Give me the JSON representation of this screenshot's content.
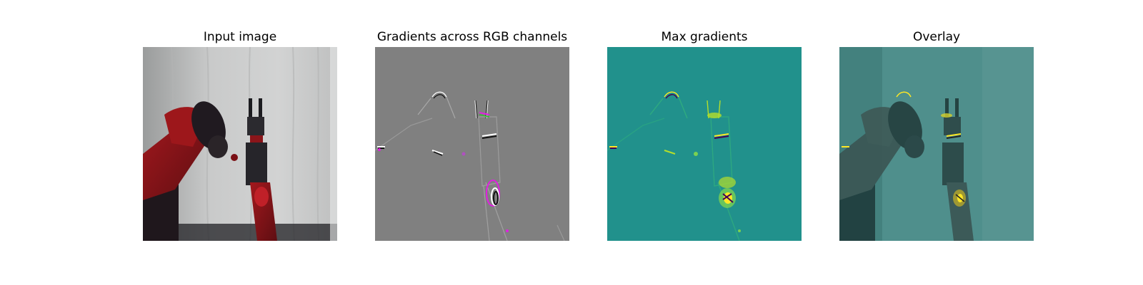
{
  "figure": {
    "panels": [
      {
        "title": "Input image"
      },
      {
        "title": "Gradients across RGB channels"
      },
      {
        "title": "Max gradients"
      },
      {
        "title": "Overlay"
      }
    ],
    "colors": {
      "background": "#ffffff",
      "curtain": "#c8c9c9",
      "robot_red": "#8e1a1d",
      "gradient_gray": "#808080",
      "viridis_teal": "#21918c",
      "viridis_yellow": "#fde725",
      "gradient_magenta": "#e020e0"
    }
  }
}
